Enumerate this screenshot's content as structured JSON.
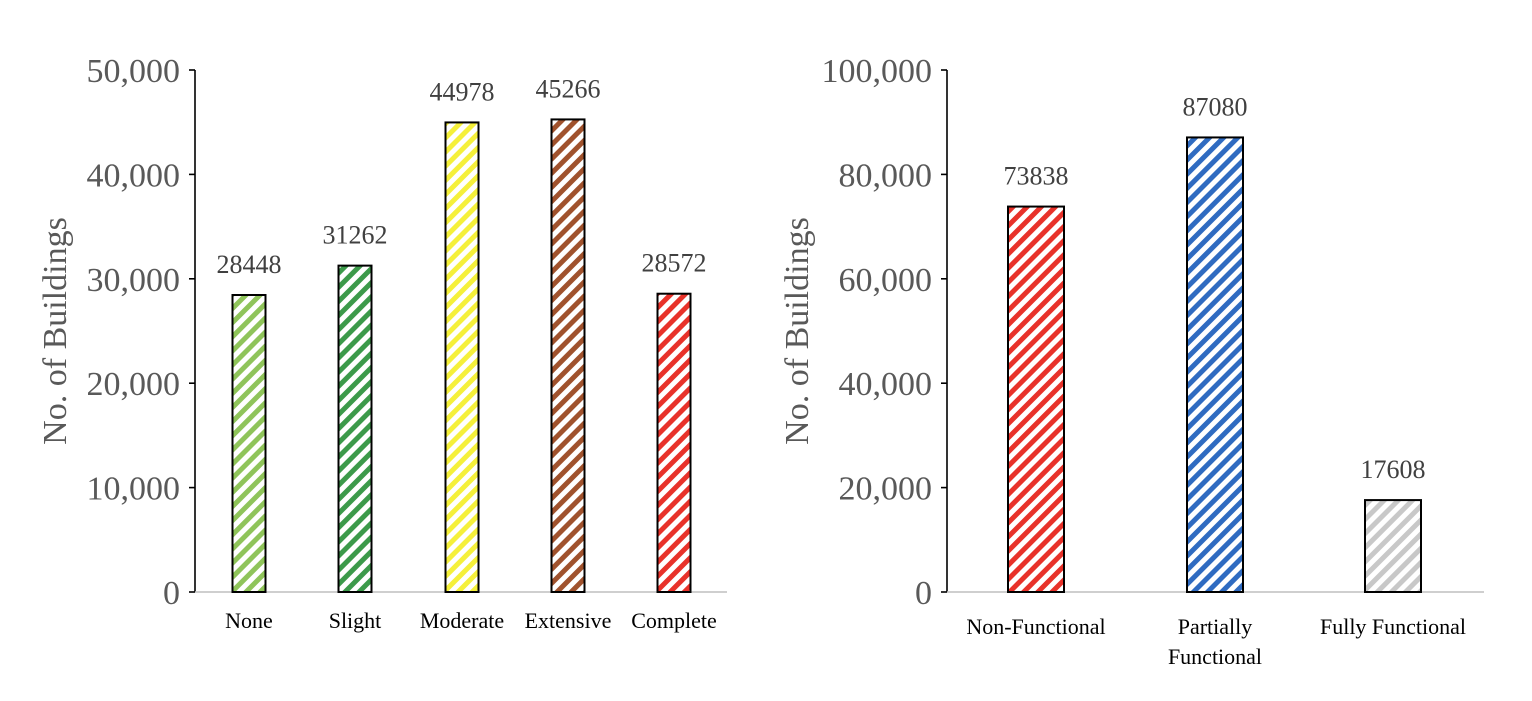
{
  "chart_data": [
    {
      "type": "bar",
      "categories": [
        "None",
        "Slight",
        "Moderate",
        "Extensive",
        "Complete"
      ],
      "values": [
        28448,
        31262,
        44978,
        45266,
        28572
      ],
      "data_labels": [
        "28448",
        "31262",
        "44978",
        "45266",
        "28572"
      ],
      "colors": [
        "#8fc45a",
        "#3c9a4a",
        "#f5f03a",
        "#a0522d",
        "#e8322a"
      ],
      "ylabel": "No. of Buildings",
      "ylim": [
        0,
        50000
      ],
      "yticks": [
        0,
        10000,
        20000,
        30000,
        40000,
        50000
      ],
      "ytick_labels": [
        "0",
        "10,000",
        "20,000",
        "30,000",
        "40,000",
        "50,000"
      ],
      "grid": false,
      "bar_pattern": "diagonal-hatch"
    },
    {
      "type": "bar",
      "categories": [
        "Non-Functional",
        "Partially Functional",
        "Fully Functional"
      ],
      "category_lines": [
        [
          "Non-Functional"
        ],
        [
          "Partially",
          "Functional"
        ],
        [
          "Fully Functional"
        ]
      ],
      "values": [
        73838,
        87080,
        17608
      ],
      "data_labels": [
        "73838",
        "87080",
        "17608"
      ],
      "colors": [
        "#e8322a",
        "#2f6bc1",
        "#c8c8c8"
      ],
      "ylabel": "No. of Buildings",
      "ylim": [
        0,
        100000
      ],
      "yticks": [
        0,
        20000,
        40000,
        60000,
        80000,
        100000
      ],
      "ytick_labels": [
        "0",
        "20,000",
        "40,000",
        "60,000",
        "80,000",
        "100,000"
      ],
      "grid": false,
      "bar_pattern": "diagonal-hatch"
    }
  ]
}
